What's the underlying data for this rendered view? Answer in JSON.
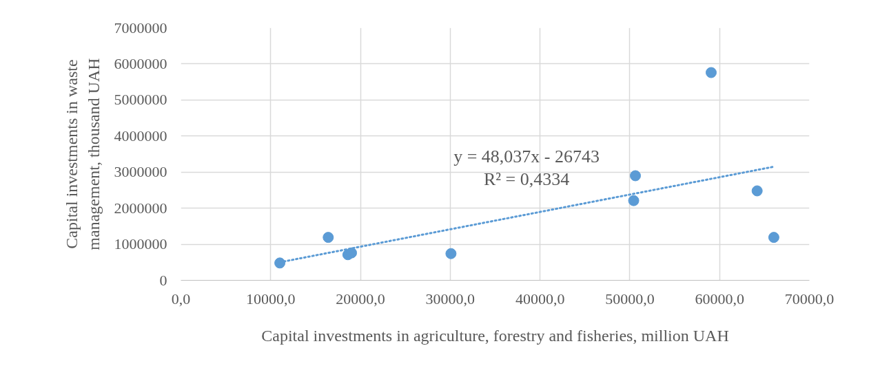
{
  "chart_data": {
    "type": "scatter",
    "xlabel": "Capital investments in agriculture, forestry and fisheries, million UAH",
    "ylabel": "Capital investments in waste management, thousand UAH",
    "xlim": [
      0,
      70000
    ],
    "ylim": [
      0,
      7000000
    ],
    "xticks": [
      {
        "value": 0,
        "label": "0,0"
      },
      {
        "value": 10000,
        "label": "10000,0"
      },
      {
        "value": 20000,
        "label": "20000,0"
      },
      {
        "value": 30000,
        "label": "30000,0"
      },
      {
        "value": 40000,
        "label": "40000,0"
      },
      {
        "value": 50000,
        "label": "50000,0"
      },
      {
        "value": 60000,
        "label": "60000,0"
      },
      {
        "value": 70000,
        "label": "70000,0"
      }
    ],
    "yticks": [
      0,
      1000000,
      2000000,
      3000000,
      4000000,
      5000000,
      6000000,
      7000000
    ],
    "grid": true,
    "annotations": [
      "y = 48,037x - 26743",
      "R² = 0,4334"
    ],
    "series": [
      {
        "color": "#5b9bd5",
        "marker": "circle",
        "x": [
          11020,
          16410,
          18600,
          19000,
          30080,
          50620,
          50430,
          59060,
          64180,
          66040
        ],
        "values": [
          480000,
          1190000,
          710000,
          760000,
          740000,
          2900000,
          2210000,
          5760000,
          2480000,
          1190000
        ]
      },
      {
        "type": "line",
        "color": "#5b9bd5",
        "line_style": "dotted",
        "x": [
          11020,
          66040
        ],
        "values": [
          500000,
          3150000
        ]
      }
    ]
  }
}
